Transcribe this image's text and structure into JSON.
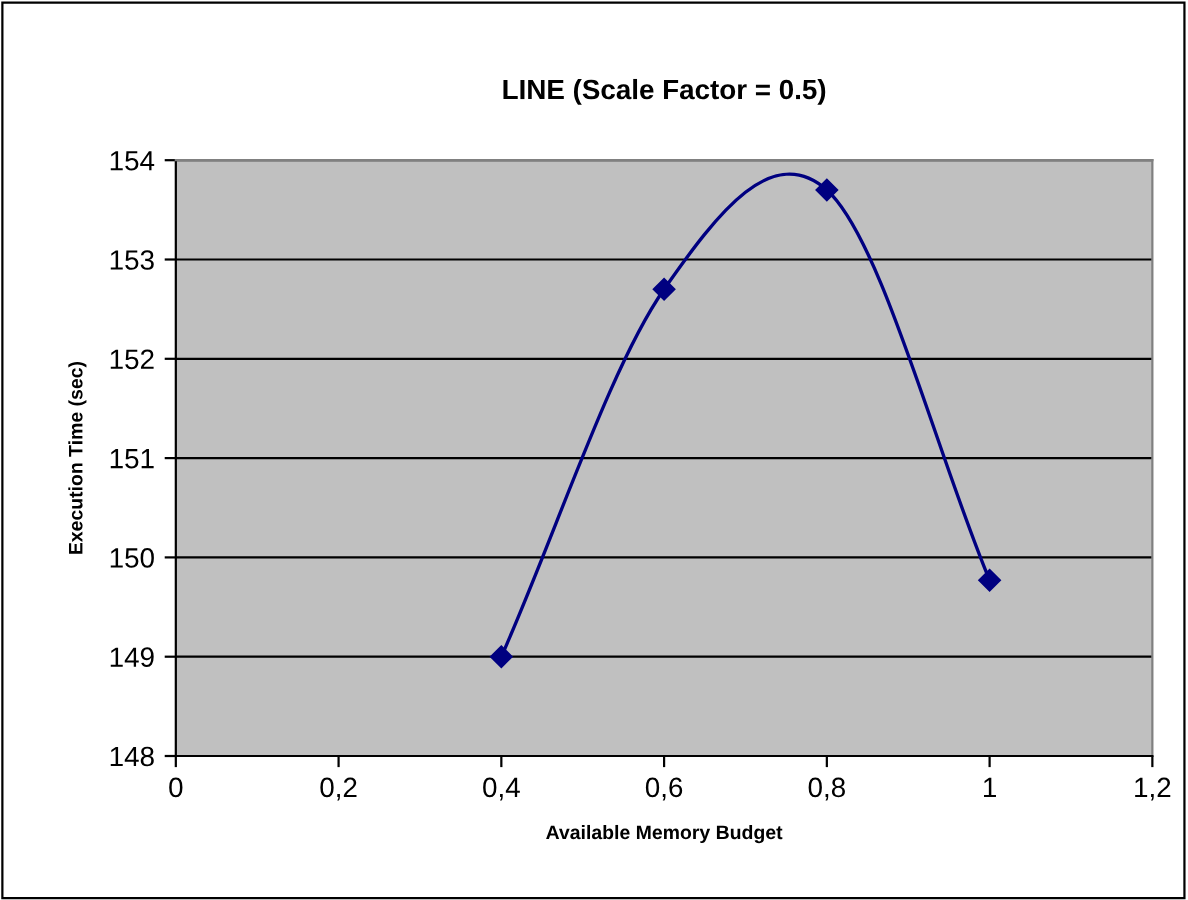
{
  "chart_data": {
    "type": "line",
    "title": "LINE (Scale Factor = 0.5)",
    "xlabel": "Available Memory Budget",
    "ylabel": "Execution Time (sec)",
    "x": [
      0.4,
      0.6,
      0.8,
      1.0
    ],
    "series": [
      {
        "color": "#000080",
        "values": [
          149.0,
          152.7,
          153.7,
          149.77
        ]
      }
    ],
    "xlim": [
      0,
      1.2
    ],
    "xticks": [
      0,
      {
        "value": 0.2,
        "label": "0,2"
      },
      {
        "value": 0.4,
        "label": "0,4"
      },
      {
        "value": 0.6,
        "label": "0,6"
      },
      {
        "value": 0.8,
        "label": "0,8"
      },
      1,
      {
        "value": 1.2,
        "label": "1,2"
      }
    ],
    "ylim": [
      148,
      154
    ],
    "yticks": [
      148,
      149,
      150,
      151,
      152,
      153,
      154
    ],
    "grid": "y",
    "legend": false,
    "marker": "diamond",
    "line_style": "solid"
  }
}
